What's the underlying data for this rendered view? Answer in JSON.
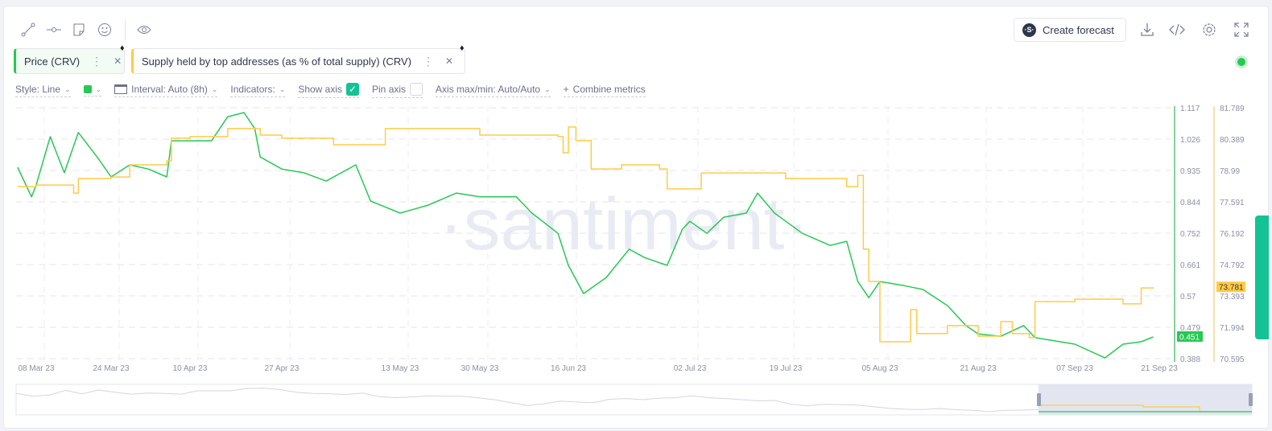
{
  "toolbar": {
    "icons": [
      "line-draw-icon",
      "horizontal-line-icon",
      "note-icon",
      "emoji-icon",
      "eye-icon"
    ],
    "create_forecast": "Create forecast",
    "right_icons": [
      "download-icon",
      "embed-code-icon",
      "settings-icon",
      "fullscreen-icon"
    ]
  },
  "metrics": [
    {
      "label": "Price (CRV)",
      "color": "#26c953"
    },
    {
      "label": "Supply held by top addresses (as % of total supply) (CRV)",
      "color": "#ffcb47"
    }
  ],
  "options": {
    "style": "Style: Line",
    "interval": "Interval: Auto (8h)",
    "indicators": "Indicators:",
    "show_axis": "Show axis",
    "show_axis_checked": true,
    "pin_axis": "Pin axis",
    "pin_axis_checked": false,
    "axis_maxmin": "Axis max/min: Auto/Auto",
    "combine": "Combine metrics"
  },
  "status_color": "#26c953",
  "watermark": "·santiment·",
  "chart_data": {
    "type": "line",
    "x_ticks": [
      "08 Mar 23",
      "24 Mar 23",
      "10 Apr 23",
      "27 Apr 23",
      "13 May 23",
      "30 May 23",
      "16 Jun 23",
      "02 Jul 23",
      "19 Jul 23",
      "05 Aug 23",
      "21 Aug 23",
      "07 Sep 23",
      "21 Sep 23"
    ],
    "grid": true,
    "y_axes": [
      {
        "series": "Price (CRV)",
        "ticks": [
          "1.117",
          "1.026",
          "0.935",
          "0.844",
          "0.752",
          "0.661",
          "0.57",
          "0.479",
          "0.388"
        ],
        "range": [
          0.388,
          1.117
        ],
        "last_value": "0.451",
        "color": "#26c953"
      },
      {
        "series": "Supply held by top addresses (as % of total supply) (CRV)",
        "ticks": [
          "81.789",
          "80.389",
          "78.99",
          "77.591",
          "76.192",
          "74.792",
          "73.393",
          "71.994",
          "70.595"
        ],
        "range": [
          70.595,
          81.789
        ],
        "last_value": "73.781",
        "color": "#ffcb47"
      }
    ],
    "series": [
      {
        "name": "Price (CRV)",
        "color": "#26c953",
        "points": [
          [
            "2023-03-04",
            0.944
          ],
          [
            "2023-03-07",
            0.858
          ],
          [
            "2023-03-08",
            0.893
          ],
          [
            "2023-03-11",
            1.033
          ],
          [
            "2023-03-14",
            0.928
          ],
          [
            "2023-03-17",
            1.045
          ],
          [
            "2023-03-21",
            0.974
          ],
          [
            "2023-03-24",
            0.916
          ],
          [
            "2023-03-28",
            0.951
          ],
          [
            "2023-04-01",
            0.939
          ],
          [
            "2023-04-05",
            0.916
          ],
          [
            "2023-04-06",
            1.021
          ],
          [
            "2023-04-10",
            1.021
          ],
          [
            "2023-04-14",
            1.021
          ],
          [
            "2023-04-17",
            1.091
          ],
          [
            "2023-04-20",
            1.103
          ],
          [
            "2023-04-22",
            1.056
          ],
          [
            "2023-04-23",
            0.974
          ],
          [
            "2023-04-27",
            0.939
          ],
          [
            "2023-04-30",
            0.928
          ],
          [
            "2023-05-03",
            0.904
          ],
          [
            "2023-05-07",
            0.951
          ],
          [
            "2023-05-09",
            0.846
          ],
          [
            "2023-05-13",
            0.811
          ],
          [
            "2023-05-19",
            0.834
          ],
          [
            "2023-05-25",
            0.869
          ],
          [
            "2023-05-30",
            0.858
          ],
          [
            "2023-06-06",
            0.858
          ],
          [
            "2023-06-09",
            0.811
          ],
          [
            "2023-06-14",
            0.752
          ],
          [
            "2023-06-16",
            0.659
          ],
          [
            "2023-06-18",
            0.577
          ],
          [
            "2023-06-21",
            0.624
          ],
          [
            "2023-06-24",
            0.706
          ],
          [
            "2023-06-26",
            0.682
          ],
          [
            "2023-06-29",
            0.659
          ],
          [
            "2023-07-01",
            0.764
          ],
          [
            "2023-07-02",
            0.787
          ],
          [
            "2023-07-05",
            0.752
          ],
          [
            "2023-07-08",
            0.799
          ],
          [
            "2023-07-12",
            0.811
          ],
          [
            "2023-07-14",
            0.869
          ],
          [
            "2023-07-17",
            0.811
          ],
          [
            "2023-07-19",
            0.787
          ],
          [
            "2023-07-22",
            0.752
          ],
          [
            "2023-07-27",
            0.717
          ],
          [
            "2023-07-30",
            0.729
          ],
          [
            "2023-08-01",
            0.612
          ],
          [
            "2023-08-03",
            0.565
          ],
          [
            "2023-08-05",
            0.612
          ],
          [
            "2023-08-09",
            0.6
          ],
          [
            "2023-08-12",
            0.589
          ],
          [
            "2023-08-16",
            0.542
          ],
          [
            "2023-08-19",
            0.484
          ],
          [
            "2023-08-21",
            0.46
          ],
          [
            "2023-08-25",
            0.453
          ],
          [
            "2023-08-29",
            0.484
          ],
          [
            "2023-08-31",
            0.449
          ],
          [
            "2023-09-07",
            0.43
          ],
          [
            "2023-09-12",
            0.39
          ],
          [
            "2023-09-15",
            0.43
          ],
          [
            "2023-09-18",
            0.437
          ],
          [
            "2023-09-20",
            0.451
          ]
        ]
      },
      {
        "name": "Supply held by top addresses (as % of total supply) (CRV)",
        "color": "#ffcb47",
        "points": [
          [
            "2023-03-04",
            78.27
          ],
          [
            "2023-03-08",
            78.34
          ],
          [
            "2023-03-16",
            77.98
          ],
          [
            "2023-03-17",
            78.63
          ],
          [
            "2023-03-24",
            78.7
          ],
          [
            "2023-03-28",
            79.24
          ],
          [
            "2023-04-05",
            79.42
          ],
          [
            "2023-04-06",
            80.43
          ],
          [
            "2023-04-10",
            80.5
          ],
          [
            "2023-04-17",
            80.86
          ],
          [
            "2023-04-23",
            80.57
          ],
          [
            "2023-04-27",
            80.43
          ],
          [
            "2023-05-04",
            80.14
          ],
          [
            "2023-05-11",
            80.86
          ],
          [
            "2023-05-30",
            80.57
          ],
          [
            "2023-06-14",
            80.5
          ],
          [
            "2023-06-15",
            79.78
          ],
          [
            "2023-06-16",
            80.93
          ],
          [
            "2023-06-17",
            80.32
          ],
          [
            "2023-06-19",
            79.06
          ],
          [
            "2023-06-23",
            79.24
          ],
          [
            "2023-06-28",
            79.06
          ],
          [
            "2023-06-29",
            78.17
          ],
          [
            "2023-07-04",
            78.88
          ],
          [
            "2023-07-19",
            78.63
          ],
          [
            "2023-07-30",
            78.27
          ],
          [
            "2023-08-01",
            78.77
          ],
          [
            "2023-08-02",
            75.48
          ],
          [
            "2023-08-03",
            74.04
          ],
          [
            "2023-08-05",
            71.35
          ],
          [
            "2023-08-10",
            72.78
          ],
          [
            "2023-08-11",
            71.71
          ],
          [
            "2023-08-16",
            72.07
          ],
          [
            "2023-08-21",
            71.6
          ],
          [
            "2023-08-25",
            72.25
          ],
          [
            "2023-08-27",
            71.71
          ],
          [
            "2023-08-30",
            71.53
          ],
          [
            "2023-08-31",
            73.14
          ],
          [
            "2023-09-07",
            73.25
          ],
          [
            "2023-09-15",
            73.04
          ],
          [
            "2023-09-18",
            73.75
          ],
          [
            "2023-09-20",
            73.781
          ]
        ]
      }
    ]
  }
}
